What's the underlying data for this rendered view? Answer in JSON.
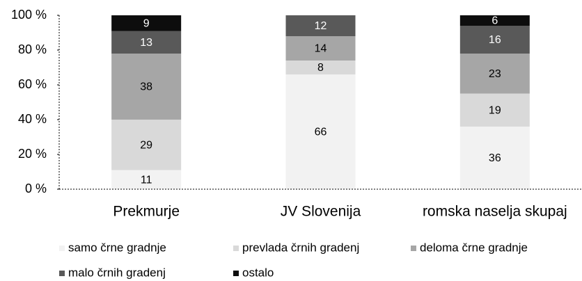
{
  "chart_data": {
    "type": "stacked_bar",
    "categories": [
      "Prekmurje",
      "JV Slovenija",
      "romska naselja skupaj"
    ],
    "series": [
      {
        "name": "samo črne gradnje",
        "color": "#f2f2f2",
        "values": [
          11,
          66,
          36
        ]
      },
      {
        "name": "prevlada črnih gradenj",
        "color": "#d9d9d9",
        "values": [
          29,
          8,
          19
        ]
      },
      {
        "name": "deloma črne gradnje",
        "color": "#a6a6a6",
        "values": [
          38,
          14,
          23
        ]
      },
      {
        "name": "malo črnih gradenj",
        "color": "#595959",
        "values": [
          13,
          12,
          16
        ]
      },
      {
        "name": "ostalo",
        "color": "#0d0d0d",
        "values": [
          9,
          null,
          6
        ]
      }
    ],
    "ylim": [
      0,
      100
    ],
    "yticks": [
      {
        "value": 0,
        "label": "0 %"
      },
      {
        "value": 20,
        "label": "20 %"
      },
      {
        "value": 40,
        "label": "40 %"
      },
      {
        "value": 60,
        "label": "60 %"
      },
      {
        "value": 80,
        "label": "80 %"
      },
      {
        "value": 100,
        "label": "100 %"
      }
    ],
    "legend": "bottom"
  }
}
